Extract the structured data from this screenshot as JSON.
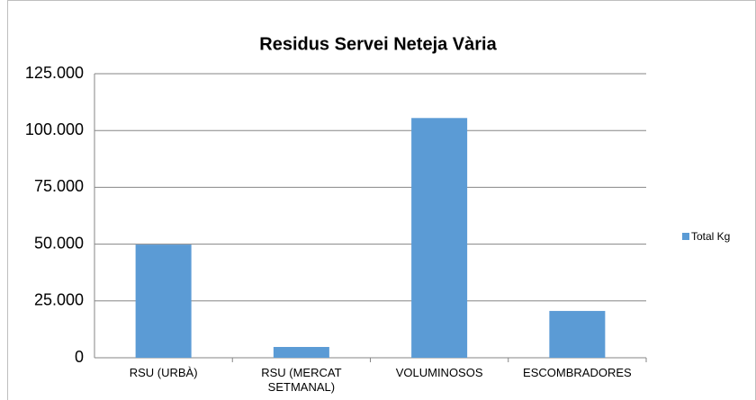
{
  "chart_data": {
    "type": "bar",
    "title": "Residus Servei Neteja Vària",
    "categories": [
      "RSU (URBÀ)",
      "RSU (MERCAT SETMANAL)",
      "VOLUMINOSOS",
      "ESCOMBRADORES"
    ],
    "series": [
      {
        "name": "Total Kg",
        "color": "#5b9bd5",
        "values": [
          49800,
          4750,
          105500,
          20600
        ]
      }
    ],
    "ylim": [
      0,
      125000
    ],
    "yticks": [
      0,
      {
        "value": 25000,
        "label": "25.000"
      },
      {
        "value": 50000,
        "label": "50.000"
      },
      {
        "value": 75000,
        "label": "75.000"
      },
      {
        "value": 100000,
        "label": "100.000"
      },
      {
        "value": 125000,
        "label": "125.000"
      }
    ],
    "grid": true,
    "legend": "right"
  }
}
